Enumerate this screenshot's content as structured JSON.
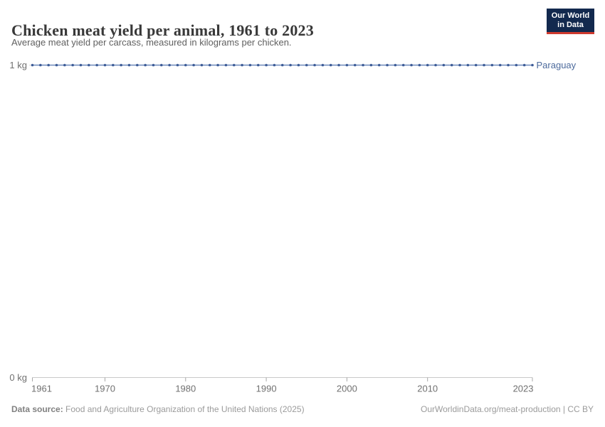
{
  "header": {
    "title": "Chicken meat yield per animal, 1961 to 2023",
    "subtitle": "Average meat yield per carcass, measured in kilograms per chicken.",
    "logo": {
      "line1": "Our World",
      "line2": "in Data",
      "bg_color": "#12294e",
      "accent_color": "#cf3a2e"
    }
  },
  "chart_data": {
    "type": "line",
    "title": "Chicken meat yield per animal, 1961 to 2023",
    "unit": "kg",
    "xlim": [
      1961,
      2023
    ],
    "ylim": [
      0,
      1
    ],
    "grid": "off",
    "legend_position": "line-end-label",
    "x": [
      1961,
      1962,
      1963,
      1964,
      1965,
      1966,
      1967,
      1968,
      1969,
      1970,
      1971,
      1972,
      1973,
      1974,
      1975,
      1976,
      1977,
      1978,
      1979,
      1980,
      1981,
      1982,
      1983,
      1984,
      1985,
      1986,
      1987,
      1988,
      1989,
      1990,
      1991,
      1992,
      1993,
      1994,
      1995,
      1996,
      1997,
      1998,
      1999,
      2000,
      2001,
      2002,
      2003,
      2004,
      2005,
      2006,
      2007,
      2008,
      2009,
      2010,
      2011,
      2012,
      2013,
      2014,
      2015,
      2016,
      2017,
      2018,
      2019,
      2020,
      2021,
      2022,
      2023
    ],
    "series": [
      {
        "name": "Paraguay",
        "line_color": "#6d89bb",
        "dot_color": "#3d5c97",
        "label_color": "#4c6a9c",
        "values": [
          1,
          1,
          1,
          1,
          1,
          1,
          1,
          1,
          1,
          1,
          1,
          1,
          1,
          1,
          1,
          1,
          1,
          1,
          1,
          1,
          1,
          1,
          1,
          1,
          1,
          1,
          1,
          1,
          1,
          1,
          1,
          1,
          1,
          1,
          1,
          1,
          1,
          1,
          1,
          1,
          1,
          1,
          1,
          1,
          1,
          1,
          1,
          1,
          1,
          1,
          1,
          1,
          1,
          1,
          1,
          1,
          1,
          1,
          1,
          1,
          1,
          1,
          1
        ]
      }
    ],
    "x_ticks": [
      1961,
      1970,
      1980,
      1990,
      2000,
      2010,
      2023
    ],
    "y_ticks": [
      {
        "value": 0,
        "label": "0 kg"
      },
      {
        "value": 1,
        "label": "1 kg"
      }
    ],
    "axis_color": "#c9c9c9",
    "tick_color": "#a8a8a8",
    "tick_label_color": "#707070"
  },
  "footer": {
    "data_source_label": "Data source:",
    "data_source": "Food and Agriculture Organization of the United Nations (2025)",
    "link": "OurWorldinData.org/meat-production | CC BY"
  }
}
